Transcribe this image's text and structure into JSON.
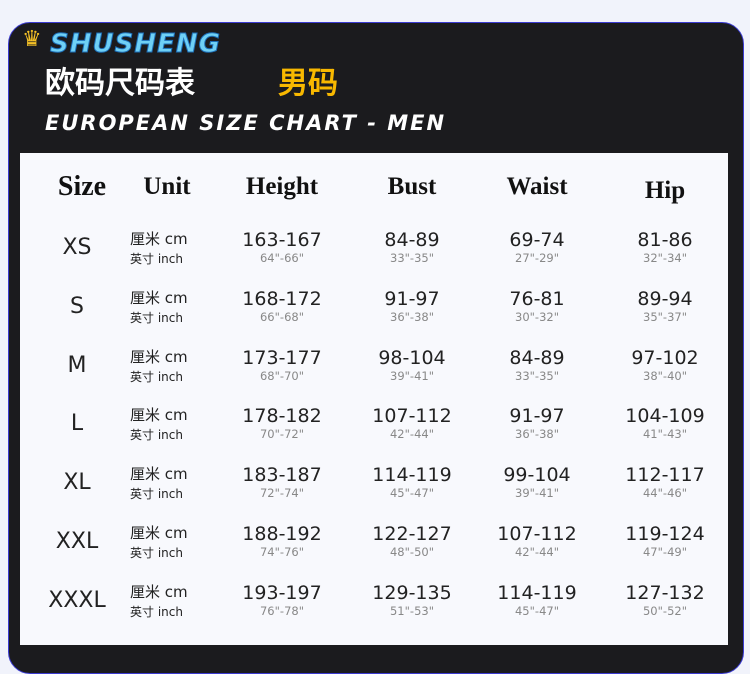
{
  "brand": "SHUSHENG",
  "title_cn": "欧码尺码表",
  "title_cn_accent": "男码",
  "title_en": "EUROPEAN SIZE CHART - MEN",
  "accent_color": "#f8b800",
  "headers": [
    "Size",
    "Unit",
    "Height",
    "Bust",
    "Waist",
    "Hip"
  ],
  "unit_cm": "厘米 cm",
  "unit_inch": "英寸  inch",
  "rows": [
    {
      "size": "XS",
      "height": [
        "163-167",
        "64\"-66\""
      ],
      "bust": [
        "84-89",
        "33\"-35\""
      ],
      "waist": [
        "69-74",
        "27\"-29\""
      ],
      "hip": [
        "81-86",
        "32\"-34\""
      ]
    },
    {
      "size": "S",
      "height": [
        "168-172",
        "66\"-68\""
      ],
      "bust": [
        "91-97",
        "36\"-38\""
      ],
      "waist": [
        "76-81",
        "30\"-32\""
      ],
      "hip": [
        "89-94",
        "35\"-37\""
      ]
    },
    {
      "size": "M",
      "height": [
        "173-177",
        "68\"-70\""
      ],
      "bust": [
        "98-104",
        "39\"-41\""
      ],
      "waist": [
        "84-89",
        "33\"-35\""
      ],
      "hip": [
        "97-102",
        "38\"-40\""
      ]
    },
    {
      "size": "L",
      "height": [
        "178-182",
        "70\"-72\""
      ],
      "bust": [
        "107-112",
        "42\"-44\""
      ],
      "waist": [
        "91-97",
        "36\"-38\""
      ],
      "hip": [
        "104-109",
        "41\"-43\""
      ]
    },
    {
      "size": "XL",
      "height": [
        "183-187",
        "72\"-74\""
      ],
      "bust": [
        "114-119",
        "45\"-47\""
      ],
      "waist": [
        "99-104",
        "39\"-41\""
      ],
      "hip": [
        "112-117",
        "44\"-46\""
      ]
    },
    {
      "size": "XXL",
      "height": [
        "188-192",
        "74\"-76\""
      ],
      "bust": [
        "122-127",
        "48\"-50\""
      ],
      "waist": [
        "107-112",
        "42\"-44\""
      ],
      "hip": [
        "119-124",
        "47\"-49\""
      ]
    },
    {
      "size": "XXXL",
      "height": [
        "193-197",
        "76\"-78\""
      ],
      "bust": [
        "129-135",
        "51\"-53\""
      ],
      "waist": [
        "114-119",
        "45\"-47\""
      ],
      "hip": [
        "127-132",
        "50\"-52\""
      ]
    }
  ]
}
